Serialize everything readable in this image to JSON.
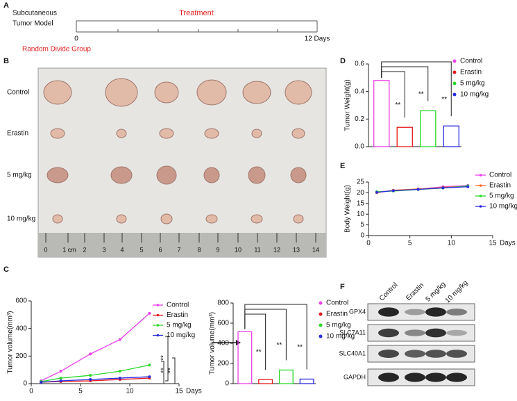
{
  "panel_labels": [
    "A",
    "B",
    "C",
    "D",
    "E",
    "F"
  ],
  "timeline": {
    "model_label": [
      "Subcutaneous",
      "Tumor Model"
    ],
    "treatment_label": "Treatment",
    "start_label": "0",
    "end_label": "12 Days",
    "group_label": "Random Divide Group"
  },
  "photo": {
    "rows": [
      "Control",
      "Erastin",
      "5 mg/kg",
      "10 mg/kg"
    ],
    "ruler_labels": [
      "0",
      "1 cm",
      "2",
      "3",
      "4",
      "5",
      "6",
      "7",
      "8",
      "9",
      "10",
      "11",
      "12",
      "13",
      "14"
    ]
  },
  "blot": {
    "lanes": [
      "Control",
      "Erastin",
      "5 mg/kg",
      "10 mg/kg"
    ],
    "proteins": [
      "GPX4",
      "SLC7A11",
      "SLC40A1",
      "GAPDH"
    ]
  },
  "chart_data": [
    {
      "type": "line",
      "x": [
        1,
        3,
        6,
        9,
        12
      ],
      "xlim": [
        0,
        15
      ],
      "xticks": [
        0,
        5,
        10,
        15
      ],
      "ylim": [
        0,
        600
      ],
      "yticks": [
        0,
        200,
        400,
        600
      ],
      "x_label": "Days",
      "y_label": "Tumor volume(mm³)",
      "series": [
        {
          "name": "Control",
          "color": "#e83fe8",
          "values": [
            20,
            90,
            215,
            320,
            510
          ]
        },
        {
          "name": "Erastin",
          "color": "#e41a1c",
          "values": [
            10,
            15,
            20,
            30,
            40
          ]
        },
        {
          "name": "5 mg/kg",
          "color": "#2bd92b",
          "values": [
            15,
            40,
            60,
            90,
            135
          ]
        },
        {
          "name": "10 mg/kg",
          "color": "#2a2ae0",
          "values": [
            10,
            20,
            30,
            40,
            50
          ]
        }
      ],
      "annotations": [
        "**",
        "**",
        "**"
      ]
    },
    {
      "type": "bar",
      "categories": [
        "Control",
        "Erastin",
        "5 mg/kg",
        "10 mg/kg"
      ],
      "values": [
        515,
        40,
        135,
        45
      ],
      "colors": [
        "#e83fe8",
        "#e41a1c",
        "#2bd92b",
        "#2a2ae0"
      ],
      "ylim": [
        0,
        800
      ],
      "yticks": [
        0,
        200,
        400,
        600,
        800
      ],
      "y_label": "Tumor volume(mm³)",
      "annotations": [
        "**",
        "**",
        "**"
      ]
    },
    {
      "type": "bar",
      "categories": [
        "Control",
        "Erastin",
        "5 mg/kg",
        "10 mg/kg"
      ],
      "values": [
        0.48,
        0.14,
        0.26,
        0.15
      ],
      "colors": [
        "#e83fe8",
        "#e41a1c",
        "#2bd92b",
        "#2a2ae0"
      ],
      "ylim": [
        0,
        0.6
      ],
      "yticks": [
        {
          "value": 0,
          "label": "0.0"
        },
        0.2,
        0.4,
        0.6
      ],
      "y_label": "Tumor Weight(g)",
      "annotations": [
        "**",
        "**",
        "**"
      ]
    },
    {
      "type": "line",
      "x": [
        1,
        3,
        6,
        9,
        12
      ],
      "xlim": [
        0,
        15
      ],
      "xticks": [
        0,
        5,
        10,
        15
      ],
      "ylim": [
        0,
        25
      ],
      "yticks": [
        0,
        5,
        10,
        15,
        20,
        25
      ],
      "x_label": "Days",
      "y_label": "Body Weight(g)",
      "series": [
        {
          "name": "Control",
          "color": "#e83fe8",
          "values": [
            20.3,
            21,
            21.7,
            22.8,
            23.4
          ]
        },
        {
          "name": "Erastin",
          "color": "#ff6a2a",
          "values": [
            20,
            21.2,
            21.8,
            22.5,
            23
          ]
        },
        {
          "name": "5 mg/kg",
          "color": "#2bd92b",
          "values": [
            20.5,
            20.8,
            21.5,
            22.2,
            23.2
          ]
        },
        {
          "name": "10 mg/kg",
          "color": "#2a2ae0",
          "values": [
            20.2,
            21,
            21.6,
            22.3,
            22.8
          ]
        }
      ]
    }
  ]
}
